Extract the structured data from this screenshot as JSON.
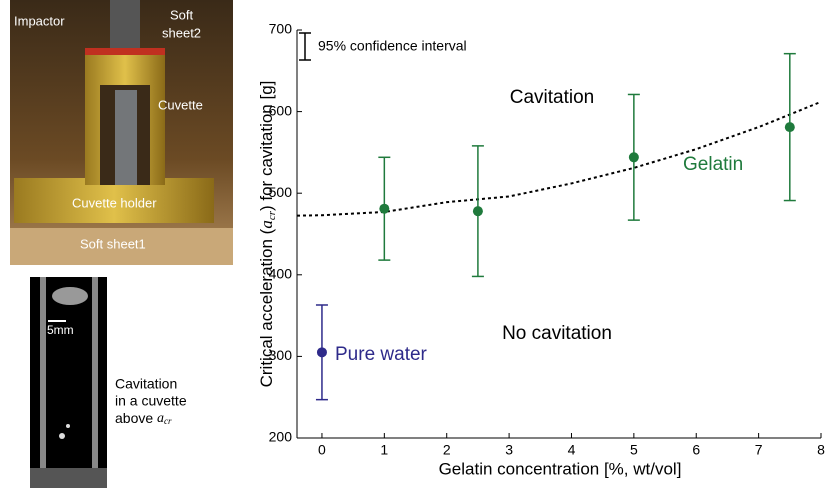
{
  "photos": {
    "setup": {
      "impactor": "Impactor",
      "soft_sheet2": [
        "Soft",
        "sheet2"
      ],
      "cuvette": "Cuvette",
      "cuvette_holder": "Cuvette holder",
      "soft_sheet1": "Soft sheet1"
    },
    "cuvette_view": {
      "scale": "5mm",
      "caption": [
        "Cavitation",
        "in a cuvette",
        "above"
      ],
      "caption_var": "a",
      "caption_sub": "cr"
    }
  },
  "chart_data": {
    "type": "errorbar",
    "xlabel": "Gelatin concentration [%, wt/vol]",
    "ylabel": {
      "before": "Critical acceleration (",
      "var": "a",
      "sub": "cr",
      "after": ") for cavitation [g]"
    },
    "xlim": [
      -0.4,
      8
    ],
    "ylim": [
      200,
      700
    ],
    "xticks": [
      0,
      1,
      2,
      3,
      4,
      5,
      6,
      7,
      8
    ],
    "yticks": [
      200,
      300,
      400,
      500,
      600,
      700
    ],
    "legend_note": "95% confidence interval",
    "annotations": [
      "Cavitation",
      "No cavitation"
    ],
    "series": [
      {
        "name": "Gelatin",
        "color": "#1f7a3c",
        "x": [
          1,
          2.5,
          5,
          7.5
        ],
        "values": [
          481,
          478,
          544,
          581
        ],
        "errors": [
          63,
          80,
          77,
          90
        ]
      },
      {
        "name": "Pure water",
        "color": "#2e2a8a",
        "x": [
          0
        ],
        "values": [
          305
        ],
        "errors": [
          58
        ]
      }
    ],
    "fit": {
      "color": "#000000",
      "x": [
        -0.4,
        0,
        1,
        2,
        3,
        4,
        5,
        6,
        7,
        8
      ],
      "values": [
        472.5,
        473,
        477,
        489,
        496,
        512,
        531,
        554,
        581,
        612
      ]
    }
  }
}
